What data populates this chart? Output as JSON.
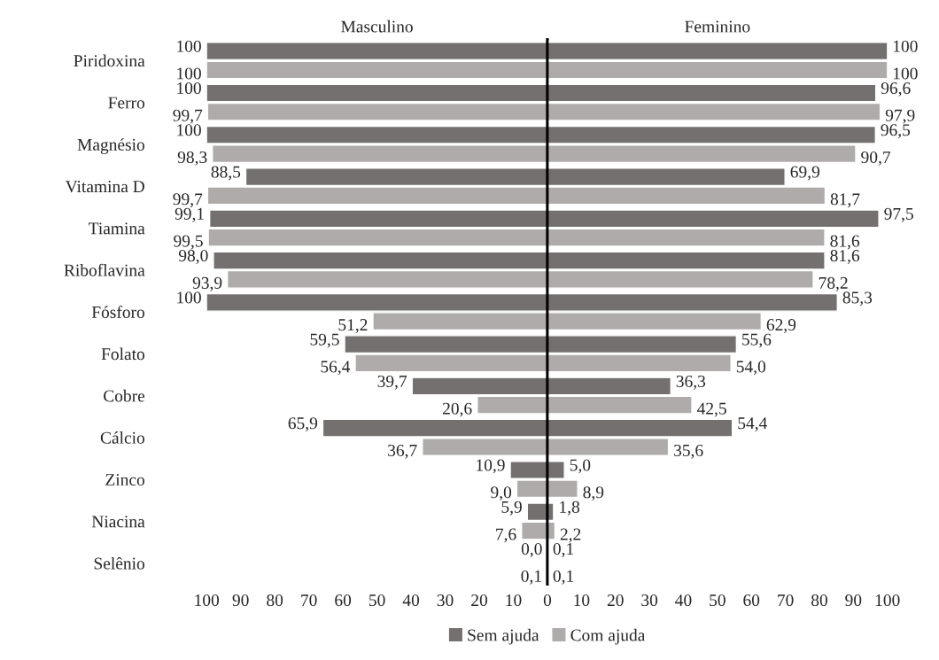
{
  "chart_data": [
    {
      "type": "bar",
      "orientation": "horizontal",
      "title": "Masculino",
      "categories": [
        "Piridoxina",
        "Ferro",
        "Magnésio",
        "Vitamina D",
        "Tiamina",
        "Riboflavina",
        "Fósforo",
        "Folato",
        "Cobre",
        "Cálcio",
        "Zinco",
        "Niacina",
        "Selênio"
      ],
      "xlim": [
        100,
        0
      ],
      "xticks": [
        100,
        90,
        80,
        70,
        60,
        50,
        40,
        30,
        20,
        10,
        0
      ],
      "legend": "bottom",
      "series": [
        {
          "name": "Sem ajuda",
          "color": "#747070",
          "values": [
            100,
            100,
            100,
            88.5,
            99.1,
            98.0,
            100,
            59.5,
            39.7,
            65.9,
            10.9,
            5.9,
            0.0
          ],
          "value_labels": [
            "100",
            "100",
            "100",
            "88,5",
            "99,1",
            "98,0",
            "100",
            "59,5",
            "39,7",
            "65,9",
            "10,9",
            "5,9",
            "0,0"
          ]
        },
        {
          "name": "Com ajuda",
          "color": "#afabab",
          "values": [
            100,
            99.7,
            98.3,
            99.7,
            99.5,
            93.9,
            51.2,
            56.4,
            20.6,
            36.7,
            9.0,
            7.6,
            0.1
          ],
          "value_labels": [
            "100",
            "99,7",
            "98,3",
            "99,7",
            "99,5",
            "93,9",
            "51,2",
            "56,4",
            "20,6",
            "36,7",
            "9,0",
            "7,6",
            "0,1"
          ]
        }
      ]
    },
    {
      "type": "bar",
      "orientation": "horizontal",
      "title": "Feminino",
      "categories": [
        null,
        null,
        null,
        null,
        null,
        null,
        null,
        null,
        null,
        null,
        null,
        null,
        null
      ],
      "xlim": [
        0,
        100
      ],
      "xticks": [
        10,
        20,
        30,
        40,
        50,
        60,
        70,
        80,
        90,
        100
      ],
      "tick_labels": "x",
      "series": [
        {
          "color": "#747070",
          "values": [
            100,
            96.6,
            96.5,
            69.9,
            97.5,
            81.6,
            85.3,
            55.6,
            36.3,
            54.4,
            5.0,
            1.8,
            0.1
          ],
          "value_labels": [
            "100",
            "96,6",
            "96,5",
            "69,9",
            "97,5",
            "81,6",
            "85,3",
            "55,6",
            "36,3",
            "54,4",
            "5,0",
            "1,8",
            "0,1"
          ]
        },
        {
          "color": "#afabab",
          "values": [
            100,
            97.9,
            90.7,
            81.7,
            81.6,
            78.2,
            62.9,
            54.0,
            42.5,
            35.6,
            8.9,
            2.2,
            0.1
          ],
          "value_labels": [
            "100",
            "97,9",
            "90,7",
            "81,7",
            "81,6",
            "78,2",
            "62,9",
            "54,0",
            "42,5",
            "35,6",
            "8,9",
            "2,2",
            "0,1"
          ]
        }
      ]
    }
  ]
}
